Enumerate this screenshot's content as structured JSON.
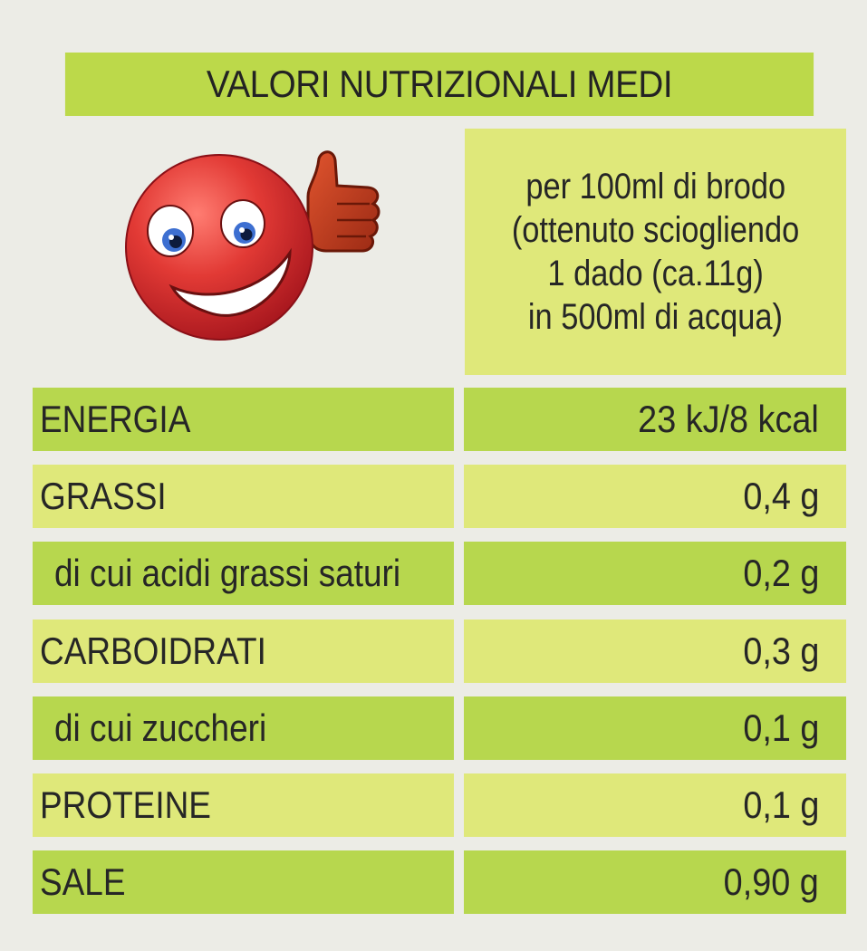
{
  "title": "VALORI NUTRIZIONALI MEDI",
  "serving": {
    "line1": "per 100ml di brodo",
    "line2": "(ottenuto sciogliendo",
    "line3": "1 dado (ca.11g)",
    "line4": "in 500ml di acqua)"
  },
  "rows": [
    {
      "label": "ENERGIA",
      "value": "23 kJ/8 kcal"
    },
    {
      "label": "GRASSI",
      "value": "0,4 g"
    },
    {
      "label": "di cui acidi grassi saturi",
      "value": "0,2 g"
    },
    {
      "label": "CARBOIDRATI",
      "value": "0,3 g"
    },
    {
      "label": "di cui zuccheri",
      "value": "0,1 g"
    },
    {
      "label": "PROTEINE",
      "value": "0,1 g"
    },
    {
      "label": "SALE",
      "value": "0,90 g"
    }
  ],
  "colors": {
    "title_bg": "#bcd94a",
    "row_green": "#b7d74e",
    "row_yellow": "#dfe87a",
    "mascot_red": "#d8262b"
  },
  "icons": {
    "mascot": "red-smiling-ball-thumbs-up-icon"
  }
}
